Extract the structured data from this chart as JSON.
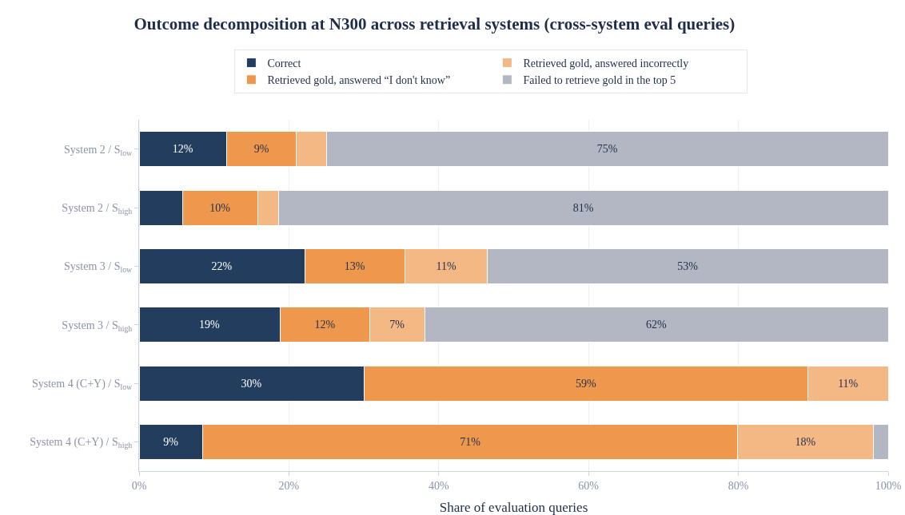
{
  "chart_data": {
    "type": "bar",
    "orientation": "horizontal",
    "stacked": true,
    "title": "Outcome decomposition at N300 across retrieval systems (cross-system eval queries)",
    "xlabel": "Share of evaluation queries",
    "categories": [
      "System 2 / S$_{low}$",
      "System 2 / S$_{high}$",
      "System 3 / S$_{low}$",
      "System 3 / S$_{high}$",
      "System 4 (C+Y) / S$_{low}$",
      "System 4 (C+Y) / S$_{high}$"
    ],
    "series": [
      {
        "name": "Correct",
        "color": "#223d5e",
        "values": [
          11.7,
          5.8,
          22.1,
          18.8,
          30.0,
          8.5
        ],
        "value_labels": [
          "12%",
          null,
          "22%",
          "19%",
          "30%",
          "9%"
        ]
      },
      {
        "name": "Retrieved gold, answered “I don't know”",
        "color": "#ee984d",
        "values": [
          9.3,
          10.0,
          13.4,
          12.0,
          59.3,
          71.4
        ],
        "value_labels": [
          "9%",
          "10%",
          "13%",
          "12%",
          "59%",
          "71%"
        ]
      },
      {
        "name": "Retrieved gold, answered incorrectly",
        "color": "#f4b885",
        "values": [
          4.0,
          2.8,
          11.0,
          7.3,
          10.7,
          18.1
        ],
        "value_labels": [
          null,
          null,
          "11%",
          "7%",
          "11%",
          "18%"
        ]
      },
      {
        "name": "Failed to retrieve gold in the top 5",
        "color": "#b3b7c3",
        "values": [
          75.0,
          81.4,
          53.5,
          61.9,
          0,
          2.0
        ],
        "value_labels": [
          "75%",
          "81%",
          "53%",
          "62%",
          null,
          null
        ]
      }
    ],
    "xlim": [
      0,
      100
    ],
    "xticks": [
      {
        "value": 0,
        "label": "0%"
      },
      {
        "value": 20,
        "label": "20%"
      },
      {
        "value": 40,
        "label": "40%"
      },
      {
        "value": 60,
        "label": "60%"
      },
      {
        "value": 80,
        "label": "80%"
      },
      {
        "value": 100,
        "label": "100%"
      }
    ],
    "grid": "x",
    "legend": "top"
  }
}
